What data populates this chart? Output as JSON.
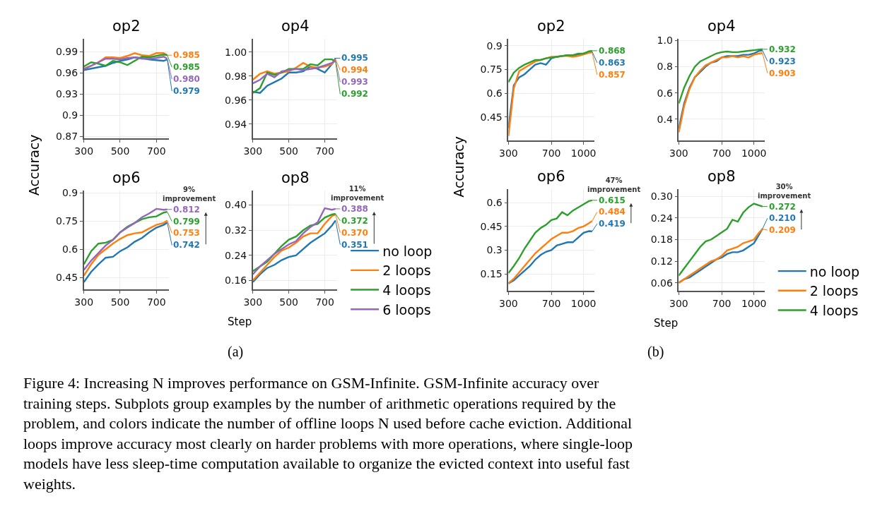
{
  "chart_data": [
    {
      "type": "line",
      "title": "op2",
      "ylabel": "Accuracy",
      "x": [
        300,
        340,
        380,
        420,
        460,
        500,
        540,
        580,
        620,
        660,
        700,
        740,
        760
      ],
      "xlim": [
        300,
        770
      ],
      "xticks": [
        300,
        500,
        700
      ],
      "ylim": [
        0.867,
        1.008
      ],
      "yticks": [
        0.87,
        0.9,
        0.93,
        0.96,
        0.99
      ],
      "grid": true,
      "series": [
        {
          "color": "#1f77b4",
          "values": [
            0.964,
            0.966,
            0.968,
            0.97,
            0.974,
            0.977,
            0.979,
            0.982,
            0.981,
            0.979,
            0.978,
            0.977,
            0.979
          ],
          "value_labels": [
            null,
            null,
            null,
            null,
            null,
            null,
            null,
            null,
            null,
            null,
            null,
            null,
            "0.979"
          ]
        },
        {
          "color": "#ff7f0e",
          "values": [
            0.966,
            0.97,
            0.975,
            0.982,
            0.982,
            0.981,
            0.984,
            0.988,
            0.985,
            0.984,
            0.988,
            0.988,
            0.985
          ],
          "value_labels": [
            null,
            null,
            null,
            null,
            null,
            null,
            null,
            null,
            null,
            null,
            null,
            null,
            "0.985"
          ]
        },
        {
          "color": "#2ca02c",
          "values": [
            0.969,
            0.975,
            0.973,
            0.97,
            0.977,
            0.975,
            0.971,
            0.977,
            0.983,
            0.982,
            0.984,
            0.986,
            0.985
          ],
          "value_labels": [
            null,
            null,
            null,
            null,
            null,
            null,
            null,
            null,
            null,
            null,
            null,
            null,
            "0.985"
          ]
        },
        {
          "color": "#9467bd",
          "values": [
            0.965,
            0.97,
            0.975,
            0.98,
            0.98,
            0.979,
            0.981,
            0.982,
            0.98,
            0.98,
            0.981,
            0.983,
            0.98
          ],
          "value_labels": [
            null,
            null,
            null,
            null,
            null,
            null,
            null,
            null,
            null,
            null,
            null,
            null,
            "0.980"
          ]
        }
      ]
    },
    {
      "type": "line",
      "title": "op4",
      "x": [
        300,
        340,
        380,
        420,
        460,
        500,
        540,
        580,
        620,
        660,
        700,
        740,
        760
      ],
      "xlim": [
        300,
        770
      ],
      "xticks": [
        300,
        500,
        700
      ],
      "ylim": [
        0.928,
        1.011
      ],
      "yticks": [
        0.94,
        0.96,
        0.98,
        {
          "value": 1.0,
          "label": "1.00"
        }
      ],
      "grid": true,
      "series": [
        {
          "color": "#1f77b4",
          "values": [
            0.967,
            0.966,
            0.972,
            0.975,
            0.978,
            0.983,
            0.983,
            0.984,
            0.988,
            0.986,
            0.983,
            0.99,
            0.995
          ],
          "value_labels": [
            null,
            null,
            null,
            null,
            null,
            null,
            null,
            null,
            null,
            null,
            null,
            null,
            "0.995"
          ]
        },
        {
          "color": "#ff7f0e",
          "values": [
            0.977,
            0.982,
            0.984,
            0.982,
            0.983,
            0.984,
            0.987,
            0.991,
            0.988,
            0.987,
            0.988,
            0.99,
            0.994
          ],
          "value_labels": [
            null,
            null,
            null,
            null,
            null,
            null,
            null,
            null,
            null,
            null,
            null,
            null,
            "0.994"
          ]
        },
        {
          "color": "#2ca02c",
          "values": [
            0.966,
            0.97,
            0.983,
            0.981,
            0.983,
            0.986,
            0.986,
            0.986,
            0.99,
            0.989,
            0.994,
            0.994,
            0.992
          ],
          "value_labels": [
            null,
            null,
            null,
            null,
            null,
            null,
            null,
            null,
            null,
            null,
            null,
            null,
            "0.992"
          ]
        },
        {
          "color": "#9467bd",
          "values": [
            0.974,
            0.977,
            0.982,
            0.979,
            0.984,
            0.985,
            0.986,
            0.985,
            0.986,
            0.987,
            0.989,
            0.991,
            0.993
          ],
          "value_labels": [
            null,
            null,
            null,
            null,
            null,
            null,
            null,
            null,
            null,
            null,
            null,
            null,
            "0.993"
          ]
        }
      ]
    },
    {
      "type": "line",
      "title": "op6",
      "x": [
        300,
        340,
        380,
        420,
        460,
        500,
        540,
        580,
        620,
        660,
        700,
        740,
        760
      ],
      "xlim": [
        300,
        770
      ],
      "xticks": [
        300,
        500,
        700
      ],
      "ylim": [
        0.387,
        0.912
      ],
      "yticks": [
        0.45,
        0.6,
        0.75,
        0.9
      ],
      "grid": true,
      "annotations": [
        "9%\nimprovement"
      ],
      "series": [
        {
          "color": "#1f77b4",
          "values": [
            0.425,
            0.48,
            0.52,
            0.555,
            0.56,
            0.59,
            0.61,
            0.64,
            0.66,
            0.69,
            0.715,
            0.73,
            0.742
          ],
          "value_labels": [
            null,
            null,
            null,
            null,
            null,
            null,
            null,
            null,
            null,
            null,
            null,
            null,
            "0.742"
          ]
        },
        {
          "color": "#ff7f0e",
          "values": [
            0.46,
            0.52,
            0.57,
            0.6,
            0.63,
            0.655,
            0.675,
            0.685,
            0.69,
            0.71,
            0.73,
            0.74,
            0.753
          ],
          "value_labels": [
            null,
            null,
            null,
            null,
            null,
            null,
            null,
            null,
            null,
            null,
            null,
            null,
            "0.753"
          ]
        },
        {
          "color": "#2ca02c",
          "values": [
            0.52,
            0.59,
            0.63,
            0.635,
            0.65,
            0.69,
            0.72,
            0.74,
            0.76,
            0.77,
            0.775,
            0.795,
            0.799
          ],
          "value_labels": [
            null,
            null,
            null,
            null,
            null,
            null,
            null,
            null,
            null,
            null,
            null,
            null,
            "0.799"
          ]
        },
        {
          "color": "#9467bd",
          "values": [
            0.49,
            0.54,
            0.58,
            0.62,
            0.65,
            0.69,
            0.715,
            0.74,
            0.77,
            0.79,
            0.815,
            0.81,
            0.812
          ],
          "value_labels": [
            null,
            null,
            null,
            null,
            null,
            null,
            null,
            null,
            null,
            null,
            null,
            null,
            "0.812"
          ]
        }
      ]
    },
    {
      "type": "line",
      "title": "op8",
      "xlabel": "Step",
      "legend": "right",
      "x": [
        300,
        340,
        380,
        420,
        460,
        500,
        540,
        580,
        620,
        660,
        700,
        740,
        760
      ],
      "xlim": [
        300,
        770
      ],
      "xticks": [
        300,
        500,
        700
      ],
      "ylim": [
        0.132,
        0.446
      ],
      "yticks": [
        0.16,
        0.24,
        0.32,
        {
          "value": 0.4,
          "label": "0.40"
        }
      ],
      "grid": true,
      "annotations": [
        "11%\nimprovement"
      ],
      "series": [
        {
          "name": "no loop",
          "color": "#1f77b4",
          "values": [
            0.155,
            0.18,
            0.2,
            0.21,
            0.225,
            0.235,
            0.24,
            0.26,
            0.28,
            0.295,
            0.31,
            0.335,
            0.351
          ],
          "value_labels": [
            null,
            null,
            null,
            null,
            null,
            null,
            null,
            null,
            null,
            null,
            null,
            null,
            "0.351"
          ]
        },
        {
          "name": "2 loops",
          "color": "#ff7f0e",
          "values": [
            0.16,
            0.185,
            0.21,
            0.235,
            0.255,
            0.265,
            0.28,
            0.3,
            0.31,
            0.31,
            0.34,
            0.365,
            0.37
          ],
          "value_labels": [
            null,
            null,
            null,
            null,
            null,
            null,
            null,
            null,
            null,
            null,
            null,
            null,
            "0.370"
          ]
        },
        {
          "name": "4 loops",
          "color": "#2ca02c",
          "values": [
            0.19,
            0.205,
            0.22,
            0.245,
            0.27,
            0.29,
            0.3,
            0.32,
            0.335,
            0.34,
            0.36,
            0.37,
            0.372
          ],
          "value_labels": [
            null,
            null,
            null,
            null,
            null,
            null,
            null,
            null,
            null,
            null,
            null,
            null,
            "0.372"
          ]
        },
        {
          "name": "6 loops",
          "color": "#9467bd",
          "values": [
            0.18,
            0.205,
            0.225,
            0.245,
            0.26,
            0.275,
            0.285,
            0.31,
            0.33,
            0.345,
            0.39,
            0.385,
            0.388
          ],
          "value_labels": [
            null,
            null,
            null,
            null,
            null,
            null,
            null,
            null,
            null,
            null,
            null,
            null,
            "0.388"
          ]
        }
      ]
    },
    {
      "type": "line",
      "title": "op2",
      "ylabel": "Accuracy",
      "x": [
        300,
        350,
        400,
        450,
        500,
        550,
        600,
        650,
        700,
        750,
        800,
        850,
        900,
        950,
        1000,
        1050,
        1080
      ],
      "xlim": [
        300,
        1100
      ],
      "xticks": [
        300,
        700,
        1000
      ],
      "ylim": [
        0.302,
        0.942
      ],
      "yticks": [
        0.45,
        0.6,
        0.75,
        0.9
      ],
      "grid": true,
      "series": [
        {
          "color": "#1f77b4",
          "values": [
            0.38,
            0.65,
            0.7,
            0.72,
            0.75,
            0.78,
            0.79,
            0.78,
            0.82,
            0.83,
            0.835,
            0.84,
            0.835,
            0.845,
            0.85,
            0.86,
            0.863
          ],
          "value_labels": [
            null,
            null,
            null,
            null,
            null,
            null,
            null,
            null,
            null,
            null,
            null,
            null,
            null,
            null,
            null,
            null,
            "0.863"
          ]
        },
        {
          "color": "#ff7f0e",
          "values": [
            0.33,
            0.63,
            0.74,
            0.76,
            0.78,
            0.8,
            0.81,
            0.82,
            0.83,
            0.83,
            0.835,
            0.835,
            0.83,
            0.835,
            0.845,
            0.855,
            0.857
          ],
          "value_labels": [
            null,
            null,
            null,
            null,
            null,
            null,
            null,
            null,
            null,
            null,
            null,
            null,
            null,
            null,
            null,
            null,
            "0.857"
          ]
        },
        {
          "color": "#2ca02c",
          "values": [
            0.67,
            0.73,
            0.76,
            0.78,
            0.795,
            0.81,
            0.81,
            0.82,
            0.825,
            0.83,
            0.835,
            0.84,
            0.84,
            0.85,
            0.85,
            0.865,
            0.868
          ],
          "value_labels": [
            null,
            null,
            null,
            null,
            null,
            null,
            null,
            null,
            null,
            null,
            null,
            null,
            null,
            null,
            null,
            null,
            "0.868"
          ]
        }
      ]
    },
    {
      "type": "line",
      "title": "op4",
      "x": [
        300,
        350,
        400,
        450,
        500,
        550,
        600,
        650,
        700,
        750,
        800,
        850,
        900,
        950,
        1000,
        1050,
        1080
      ],
      "xlim": [
        300,
        1100
      ],
      "xticks": [
        300,
        700,
        1000
      ],
      "ylim": [
        0.238,
        1.01
      ],
      "yticks": [
        0.4,
        0.6,
        0.8,
        {
          "value": 1.0,
          "label": "1.0"
        }
      ],
      "grid": true,
      "series": [
        {
          "color": "#1f77b4",
          "values": [
            0.33,
            0.52,
            0.64,
            0.72,
            0.76,
            0.8,
            0.83,
            0.84,
            0.87,
            0.88,
            0.88,
            0.88,
            0.89,
            0.89,
            0.9,
            0.92,
            0.923
          ],
          "value_labels": [
            null,
            null,
            null,
            null,
            null,
            null,
            null,
            null,
            null,
            null,
            null,
            null,
            null,
            null,
            null,
            null,
            "0.923"
          ]
        },
        {
          "color": "#ff7f0e",
          "values": [
            0.3,
            0.5,
            0.63,
            0.72,
            0.77,
            0.81,
            0.83,
            0.85,
            0.87,
            0.87,
            0.88,
            0.87,
            0.88,
            0.87,
            0.89,
            0.9,
            0.903
          ],
          "value_labels": [
            null,
            null,
            null,
            null,
            null,
            null,
            null,
            null,
            null,
            null,
            null,
            null,
            null,
            null,
            null,
            null,
            "0.903"
          ]
        },
        {
          "color": "#2ca02c",
          "values": [
            0.52,
            0.64,
            0.73,
            0.8,
            0.84,
            0.86,
            0.88,
            0.9,
            0.91,
            0.915,
            0.91,
            0.91,
            0.915,
            0.92,
            0.925,
            0.93,
            0.932
          ],
          "value_labels": [
            null,
            null,
            null,
            null,
            null,
            null,
            null,
            null,
            null,
            null,
            null,
            null,
            null,
            null,
            null,
            null,
            "0.932"
          ]
        }
      ]
    },
    {
      "type": "line",
      "title": "op6",
      "x": [
        300,
        350,
        400,
        450,
        500,
        550,
        600,
        650,
        700,
        750,
        800,
        850,
        900,
        950,
        1000,
        1050,
        1080
      ],
      "xlim": [
        300,
        1100
      ],
      "xticks": [
        300,
        700,
        1000
      ],
      "ylim": [
        0.044,
        0.685
      ],
      "yticks": [
        0.15,
        0.3,
        0.45,
        0.6
      ],
      "grid": true,
      "annotations": [
        "47%\nimprovement"
      ],
      "series": [
        {
          "color": "#1f77b4",
          "values": [
            0.09,
            0.11,
            0.14,
            0.17,
            0.2,
            0.24,
            0.27,
            0.29,
            0.3,
            0.33,
            0.34,
            0.35,
            0.35,
            0.38,
            0.41,
            0.42,
            0.419
          ],
          "value_labels": [
            null,
            null,
            null,
            null,
            null,
            null,
            null,
            null,
            null,
            null,
            null,
            null,
            null,
            null,
            null,
            null,
            "0.419"
          ]
        },
        {
          "color": "#ff7f0e",
          "values": [
            0.09,
            0.12,
            0.16,
            0.2,
            0.24,
            0.28,
            0.31,
            0.34,
            0.37,
            0.39,
            0.41,
            0.41,
            0.42,
            0.44,
            0.45,
            0.47,
            0.484
          ],
          "value_labels": [
            null,
            null,
            null,
            null,
            null,
            null,
            null,
            null,
            null,
            null,
            null,
            null,
            null,
            null,
            null,
            null,
            "0.484"
          ]
        },
        {
          "color": "#2ca02c",
          "values": [
            0.155,
            0.2,
            0.25,
            0.31,
            0.36,
            0.41,
            0.44,
            0.46,
            0.49,
            0.5,
            0.54,
            0.52,
            0.55,
            0.57,
            0.59,
            0.61,
            0.615
          ],
          "value_labels": [
            null,
            null,
            null,
            null,
            null,
            null,
            null,
            null,
            null,
            null,
            null,
            null,
            null,
            null,
            null,
            null,
            "0.615"
          ]
        }
      ]
    },
    {
      "type": "line",
      "title": "op8",
      "xlabel": "Step",
      "legend": "right",
      "x": [
        300,
        350,
        400,
        450,
        500,
        550,
        600,
        650,
        700,
        750,
        800,
        850,
        900,
        950,
        1000,
        1050,
        1080
      ],
      "xlim": [
        300,
        1100
      ],
      "xticks": [
        300,
        700,
        1000
      ],
      "ylim": [
        0.038,
        0.32
      ],
      "yticks": [
        0.06,
        0.12,
        0.18,
        0.24,
        {
          "value": 0.3,
          "label": "0.30"
        }
      ],
      "grid": true,
      "annotations": [
        "30%\nimprovement"
      ],
      "series": [
        {
          "name": "no loop",
          "color": "#1f77b4",
          "values": [
            0.06,
            0.07,
            0.075,
            0.085,
            0.095,
            0.105,
            0.115,
            0.125,
            0.13,
            0.14,
            0.145,
            0.145,
            0.15,
            0.16,
            0.17,
            0.195,
            0.21
          ],
          "value_labels": [
            null,
            null,
            null,
            null,
            null,
            null,
            null,
            null,
            null,
            null,
            null,
            null,
            null,
            null,
            null,
            null,
            "0.210"
          ]
        },
        {
          "name": "2 loops",
          "color": "#ff7f0e",
          "values": [
            0.06,
            0.07,
            0.08,
            0.09,
            0.1,
            0.11,
            0.12,
            0.125,
            0.135,
            0.15,
            0.155,
            0.16,
            0.17,
            0.175,
            0.18,
            0.2,
            0.209
          ],
          "value_labels": [
            null,
            null,
            null,
            null,
            null,
            null,
            null,
            null,
            null,
            null,
            null,
            null,
            null,
            null,
            null,
            null,
            "0.209"
          ]
        },
        {
          "name": "4 loops",
          "color": "#2ca02c",
          "values": [
            0.08,
            0.1,
            0.12,
            0.14,
            0.16,
            0.175,
            0.18,
            0.19,
            0.2,
            0.21,
            0.235,
            0.23,
            0.255,
            0.27,
            0.28,
            0.275,
            0.272
          ],
          "value_labels": [
            null,
            null,
            null,
            null,
            null,
            null,
            null,
            null,
            null,
            null,
            null,
            null,
            null,
            null,
            null,
            null,
            "0.272"
          ]
        }
      ]
    },
    {
      "type": "other",
      "annotations": [
        "(a)",
        "(b)",
        "Figure 4: Increasing N improves performance on GSM-Infinite. GSM-Infinite accuracy over\ntraining steps. Subplots group examples by the number of arithmetic operations required by the\nproblem, and colors indicate the number of offline loops N used before cache eviction. Additional\nloops improve accuracy most clearly on harder problems with more operations, where single-loop\nmodels have less sleep-time computation available to organize the evicted context into useful fast\nweights."
      ]
    }
  ]
}
